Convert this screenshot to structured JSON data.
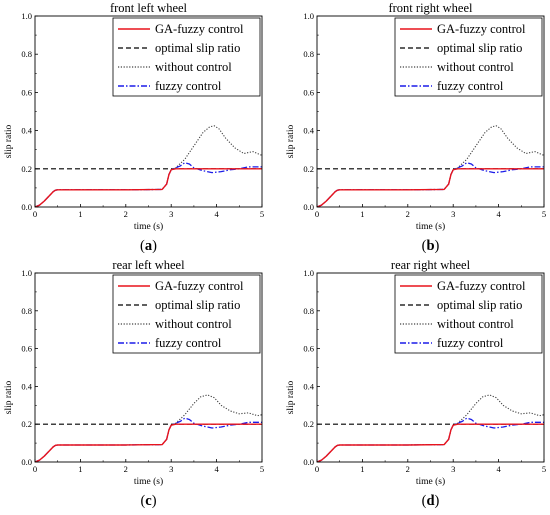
{
  "colors": {
    "ga_fuzzy": "#e8141c",
    "optimal": "#000000",
    "without": "#404040",
    "fuzzy": "#1c1ce8"
  },
  "chart_data": [
    {
      "type": "line",
      "title": "front left wheel",
      "subfigure": "a",
      "xlabel": "time (s)",
      "ylabel": "slip ratio",
      "xlim": [
        0,
        5
      ],
      "ylim": [
        0,
        1.0
      ],
      "xticks": [
        "0",
        "1",
        "2",
        "3",
        "4",
        "5"
      ],
      "yticks": [
        "0.0",
        "0.2",
        "0.4",
        "0.6",
        "0.8",
        "1.0"
      ],
      "grid": false,
      "legend_position": "top-right",
      "series": [
        {
          "name": "GA-fuzzy control",
          "style": "solid",
          "x": [
            0,
            0.1,
            0.2,
            0.3,
            0.4,
            0.45,
            0.5,
            0.6,
            1.0,
            2.0,
            2.8,
            2.9,
            2.95,
            3.0,
            3.1,
            3.5,
            4.0,
            4.5,
            5.0
          ],
          "y": [
            0.0,
            0.01,
            0.03,
            0.055,
            0.08,
            0.088,
            0.09,
            0.09,
            0.09,
            0.09,
            0.092,
            0.12,
            0.17,
            0.195,
            0.2,
            0.2,
            0.2,
            0.2,
            0.2
          ]
        },
        {
          "name": "optimal slip ratio",
          "style": "dashed",
          "x": [
            0,
            5
          ],
          "y": [
            0.2,
            0.2
          ]
        },
        {
          "name": "without control",
          "style": "dotted",
          "x": [
            0,
            0.1,
            0.2,
            0.3,
            0.4,
            0.45,
            0.5,
            0.6,
            1.0,
            2.0,
            2.8,
            2.9,
            2.95,
            3.0,
            3.1,
            3.3,
            3.5,
            3.7,
            3.85,
            3.95,
            4.05,
            4.2,
            4.4,
            4.6,
            4.8,
            5.0
          ],
          "y": [
            0.0,
            0.01,
            0.03,
            0.055,
            0.08,
            0.088,
            0.09,
            0.09,
            0.09,
            0.09,
            0.092,
            0.12,
            0.17,
            0.195,
            0.205,
            0.25,
            0.32,
            0.39,
            0.42,
            0.425,
            0.41,
            0.36,
            0.31,
            0.28,
            0.29,
            0.27
          ]
        },
        {
          "name": "fuzzy control",
          "style": "dashdot",
          "x": [
            0,
            0.1,
            0.2,
            0.3,
            0.4,
            0.45,
            0.5,
            0.6,
            1.0,
            2.0,
            2.8,
            2.9,
            2.95,
            3.0,
            3.1,
            3.2,
            3.3,
            3.4,
            3.5,
            3.7,
            3.9,
            4.1,
            4.3,
            4.5,
            4.7,
            5.0
          ],
          "y": [
            0.0,
            0.01,
            0.03,
            0.055,
            0.08,
            0.088,
            0.09,
            0.09,
            0.09,
            0.09,
            0.092,
            0.12,
            0.17,
            0.195,
            0.205,
            0.215,
            0.232,
            0.225,
            0.205,
            0.19,
            0.18,
            0.185,
            0.195,
            0.2,
            0.21,
            0.21
          ]
        }
      ]
    },
    {
      "type": "line",
      "title": "front right wheel",
      "subfigure": "b",
      "xlabel": "time (s)",
      "ylabel": "slip ratio",
      "xlim": [
        0,
        5
      ],
      "ylim": [
        0,
        1.0
      ],
      "xticks": [
        "0",
        "1",
        "2",
        "3",
        "4",
        "5"
      ],
      "yticks": [
        "0.0",
        "0.2",
        "0.4",
        "0.6",
        "0.8",
        "1.0"
      ],
      "grid": false,
      "legend_position": "top-right",
      "series": [
        {
          "name": "GA-fuzzy control",
          "style": "solid",
          "x": [
            0,
            0.1,
            0.2,
            0.3,
            0.4,
            0.45,
            0.5,
            0.6,
            1.0,
            2.0,
            2.8,
            2.9,
            2.95,
            3.0,
            3.1,
            3.5,
            4.0,
            4.5,
            5.0
          ],
          "y": [
            0.0,
            0.01,
            0.03,
            0.055,
            0.08,
            0.088,
            0.09,
            0.09,
            0.09,
            0.09,
            0.092,
            0.12,
            0.17,
            0.195,
            0.2,
            0.2,
            0.2,
            0.2,
            0.2
          ]
        },
        {
          "name": "optimal slip ratio",
          "style": "dashed",
          "x": [
            0,
            5
          ],
          "y": [
            0.2,
            0.2
          ]
        },
        {
          "name": "without control",
          "style": "dotted",
          "x": [
            0,
            0.1,
            0.2,
            0.3,
            0.4,
            0.45,
            0.5,
            0.6,
            1.0,
            2.0,
            2.8,
            2.9,
            2.95,
            3.0,
            3.1,
            3.3,
            3.5,
            3.7,
            3.85,
            3.95,
            4.05,
            4.2,
            4.4,
            4.6,
            4.8,
            5.0
          ],
          "y": [
            0.0,
            0.01,
            0.03,
            0.055,
            0.08,
            0.088,
            0.09,
            0.09,
            0.09,
            0.09,
            0.092,
            0.12,
            0.17,
            0.195,
            0.205,
            0.25,
            0.32,
            0.39,
            0.42,
            0.425,
            0.41,
            0.36,
            0.31,
            0.28,
            0.29,
            0.27
          ]
        },
        {
          "name": "fuzzy control",
          "style": "dashdot",
          "x": [
            0,
            0.1,
            0.2,
            0.3,
            0.4,
            0.45,
            0.5,
            0.6,
            1.0,
            2.0,
            2.8,
            2.9,
            2.95,
            3.0,
            3.1,
            3.2,
            3.3,
            3.4,
            3.5,
            3.7,
            3.9,
            4.1,
            4.3,
            4.5,
            4.7,
            5.0
          ],
          "y": [
            0.0,
            0.01,
            0.03,
            0.055,
            0.08,
            0.088,
            0.09,
            0.09,
            0.09,
            0.09,
            0.092,
            0.12,
            0.17,
            0.195,
            0.205,
            0.215,
            0.232,
            0.225,
            0.205,
            0.19,
            0.18,
            0.185,
            0.195,
            0.2,
            0.21,
            0.21
          ]
        }
      ]
    },
    {
      "type": "line",
      "title": "rear left wheel",
      "subfigure": "c",
      "xlabel": "time (s)",
      "ylabel": "slip ratio",
      "xlim": [
        0,
        5
      ],
      "ylim": [
        0,
        1.0
      ],
      "xticks": [
        "0",
        "1",
        "2",
        "3",
        "4",
        "5"
      ],
      "yticks": [
        "0.0",
        "0.2",
        "0.4",
        "0.6",
        "0.8",
        "1.0"
      ],
      "grid": false,
      "legend_position": "top-right",
      "series": [
        {
          "name": "GA-fuzzy control",
          "style": "solid",
          "x": [
            0,
            0.1,
            0.2,
            0.3,
            0.4,
            0.45,
            0.5,
            0.6,
            1.0,
            2.0,
            2.8,
            2.9,
            2.95,
            3.0,
            3.1,
            3.5,
            4.0,
            4.5,
            5.0
          ],
          "y": [
            0.0,
            0.01,
            0.03,
            0.055,
            0.08,
            0.088,
            0.09,
            0.09,
            0.09,
            0.09,
            0.092,
            0.12,
            0.17,
            0.195,
            0.2,
            0.2,
            0.2,
            0.2,
            0.2
          ]
        },
        {
          "name": "optimal slip ratio",
          "style": "dashed",
          "x": [
            0,
            5
          ],
          "y": [
            0.2,
            0.2
          ]
        },
        {
          "name": "without control",
          "style": "dotted",
          "x": [
            0,
            0.1,
            0.2,
            0.3,
            0.4,
            0.45,
            0.5,
            0.6,
            1.0,
            2.0,
            2.8,
            2.9,
            2.95,
            3.0,
            3.1,
            3.3,
            3.5,
            3.65,
            3.8,
            3.95,
            4.1,
            4.3,
            4.5,
            4.7,
            4.9,
            5.0
          ],
          "y": [
            0.0,
            0.01,
            0.03,
            0.055,
            0.08,
            0.088,
            0.09,
            0.09,
            0.09,
            0.09,
            0.092,
            0.12,
            0.17,
            0.195,
            0.205,
            0.25,
            0.31,
            0.345,
            0.355,
            0.34,
            0.3,
            0.27,
            0.255,
            0.26,
            0.245,
            0.25
          ]
        },
        {
          "name": "fuzzy control",
          "style": "dashdot",
          "x": [
            0,
            0.1,
            0.2,
            0.3,
            0.4,
            0.45,
            0.5,
            0.6,
            1.0,
            2.0,
            2.8,
            2.9,
            2.95,
            3.0,
            3.1,
            3.2,
            3.3,
            3.4,
            3.5,
            3.7,
            3.9,
            4.1,
            4.3,
            4.5,
            4.7,
            5.0
          ],
          "y": [
            0.0,
            0.01,
            0.03,
            0.055,
            0.08,
            0.088,
            0.09,
            0.09,
            0.09,
            0.09,
            0.092,
            0.12,
            0.17,
            0.195,
            0.205,
            0.215,
            0.232,
            0.225,
            0.205,
            0.19,
            0.18,
            0.185,
            0.195,
            0.2,
            0.21,
            0.21
          ]
        }
      ]
    },
    {
      "type": "line",
      "title": "rear right wheel",
      "subfigure": "d",
      "xlabel": "time (s)",
      "ylabel": "slip ratio",
      "xlim": [
        0,
        5
      ],
      "ylim": [
        0,
        1.0
      ],
      "xticks": [
        "0",
        "1",
        "2",
        "3",
        "4",
        "5"
      ],
      "yticks": [
        "0.0",
        "0.2",
        "0.4",
        "0.6",
        "0.8",
        "1.0"
      ],
      "grid": false,
      "legend_position": "top-right",
      "series": [
        {
          "name": "GA-fuzzy control",
          "style": "solid",
          "x": [
            0,
            0.1,
            0.2,
            0.3,
            0.4,
            0.45,
            0.5,
            0.6,
            1.0,
            2.0,
            2.8,
            2.9,
            2.95,
            3.0,
            3.1,
            3.5,
            4.0,
            4.5,
            5.0
          ],
          "y": [
            0.0,
            0.01,
            0.03,
            0.055,
            0.08,
            0.088,
            0.09,
            0.09,
            0.09,
            0.09,
            0.092,
            0.12,
            0.17,
            0.195,
            0.2,
            0.2,
            0.2,
            0.2,
            0.2
          ]
        },
        {
          "name": "optimal slip ratio",
          "style": "dashed",
          "x": [
            0,
            5
          ],
          "y": [
            0.2,
            0.2
          ]
        },
        {
          "name": "without control",
          "style": "dotted",
          "x": [
            0,
            0.1,
            0.2,
            0.3,
            0.4,
            0.45,
            0.5,
            0.6,
            1.0,
            2.0,
            2.8,
            2.9,
            2.95,
            3.0,
            3.1,
            3.3,
            3.5,
            3.65,
            3.8,
            3.95,
            4.1,
            4.3,
            4.5,
            4.7,
            4.9,
            5.0
          ],
          "y": [
            0.0,
            0.01,
            0.03,
            0.055,
            0.08,
            0.088,
            0.09,
            0.09,
            0.09,
            0.09,
            0.092,
            0.12,
            0.17,
            0.195,
            0.205,
            0.25,
            0.31,
            0.345,
            0.355,
            0.34,
            0.3,
            0.27,
            0.255,
            0.26,
            0.245,
            0.25
          ]
        },
        {
          "name": "fuzzy control",
          "style": "dashdot",
          "x": [
            0,
            0.1,
            0.2,
            0.3,
            0.4,
            0.45,
            0.5,
            0.6,
            1.0,
            2.0,
            2.8,
            2.9,
            2.95,
            3.0,
            3.1,
            3.2,
            3.3,
            3.4,
            3.5,
            3.7,
            3.9,
            4.1,
            4.3,
            4.5,
            4.7,
            5.0
          ],
          "y": [
            0.0,
            0.01,
            0.03,
            0.055,
            0.08,
            0.088,
            0.09,
            0.09,
            0.09,
            0.09,
            0.092,
            0.12,
            0.17,
            0.195,
            0.205,
            0.215,
            0.232,
            0.225,
            0.205,
            0.19,
            0.18,
            0.185,
            0.195,
            0.2,
            0.21,
            0.21
          ]
        }
      ]
    }
  ]
}
